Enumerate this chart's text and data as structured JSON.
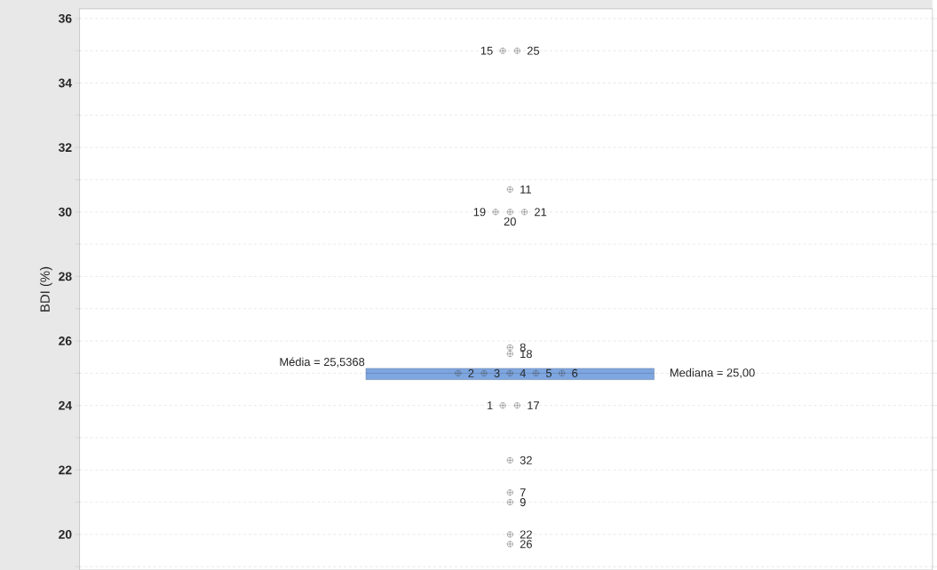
{
  "chart_data": {
    "type": "box",
    "categories": [
      null
    ],
    "ylabel": "BDI (%)",
    "ylim": [
      18.9,
      36.3
    ],
    "yticks": [
      {
        "value": 19,
        "label": null
      },
      20,
      {
        "value": 21,
        "label": null
      },
      22,
      {
        "value": 23,
        "label": null
      },
      24,
      {
        "value": 25,
        "label": null
      },
      26,
      {
        "value": 27,
        "label": null
      },
      28,
      {
        "value": 29,
        "label": null
      },
      30,
      {
        "value": 31,
        "label": null
      },
      32,
      {
        "value": 33,
        "label": null
      },
      34,
      {
        "value": 35,
        "label": null
      },
      36
    ],
    "grid": "y",
    "marker": "circle",
    "series": [
      {
        "color": "#7ea6e0",
        "boxes": [
          {
            "low": 24.8,
            "q1": 24.8,
            "median": 25.0,
            "q3": 25.15,
            "high": 25.15,
            "outliers": [
              35,
              35,
              30.7,
              30,
              30,
              30,
              25.8,
              25.6,
              25,
              25,
              25,
              25,
              25,
              24,
              24,
              22.3,
              21.3,
              21,
              20,
              19.7
            ]
          }
        ]
      }
    ],
    "annotations": [
      "Média = 25,5368",
      "Mediana = 25,00",
      "15",
      "25",
      "11",
      "19",
      "20",
      "21",
      "8",
      "18",
      "2",
      "3",
      "4",
      "5",
      "6",
      "1",
      "17",
      "32",
      "7",
      "9",
      "22",
      "26"
    ]
  }
}
